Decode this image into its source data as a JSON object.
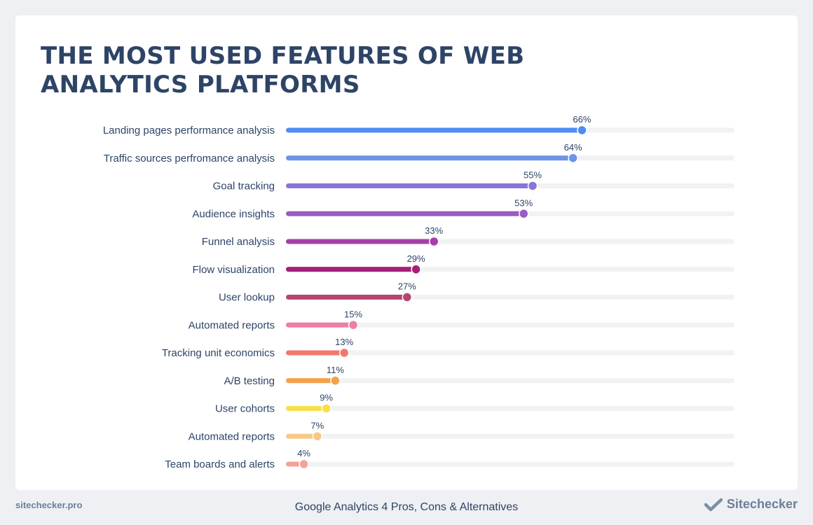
{
  "chart_data": {
    "type": "bar",
    "orientation": "horizontal",
    "title": [
      "THE MOST USED FEATURES OF WEB",
      "ANALYTICS PLATFORMS"
    ],
    "categories": [
      "Landing pages performance analysis",
      "Traffic sources perfromance analysis",
      "Goal tracking",
      "Audience insights",
      "Funnel analysis",
      "Flow visualization",
      "User lookup",
      "Automated reports",
      "Tracking unit economics",
      "A/B testing",
      "User cohorts",
      "Automated reports",
      "Team boards and alerts"
    ],
    "values": [
      66,
      64,
      55,
      53,
      33,
      29,
      27,
      15,
      13,
      11,
      9,
      7,
      4
    ],
    "value_labels": [
      "66%",
      "64%",
      "55%",
      "53%",
      "33%",
      "29%",
      "27%",
      "15%",
      "13%",
      "11%",
      "9%",
      "7%",
      "4%"
    ],
    "colors": [
      "#4f8df4",
      "#6c94e8",
      "#8a74d6",
      "#9a5cc2",
      "#a63fa8",
      "#a51f78",
      "#b44670",
      "#ee7fa4",
      "#f2786e",
      "#f3a24a",
      "#f7df4a",
      "#f7c987",
      "#f3a29a"
    ],
    "xlim": [
      0,
      100
    ],
    "grid": false,
    "legend": "none"
  },
  "footer": {
    "site": "sitechecker.pro",
    "caption": "Google Analytics 4 Pros, Cons & Alternatives",
    "brand": "Sitechecker"
  },
  "colors": {
    "title": "#2d4466",
    "track": "#f1f2f4",
    "label": "#2d4466",
    "footer": "#6b7f99"
  }
}
